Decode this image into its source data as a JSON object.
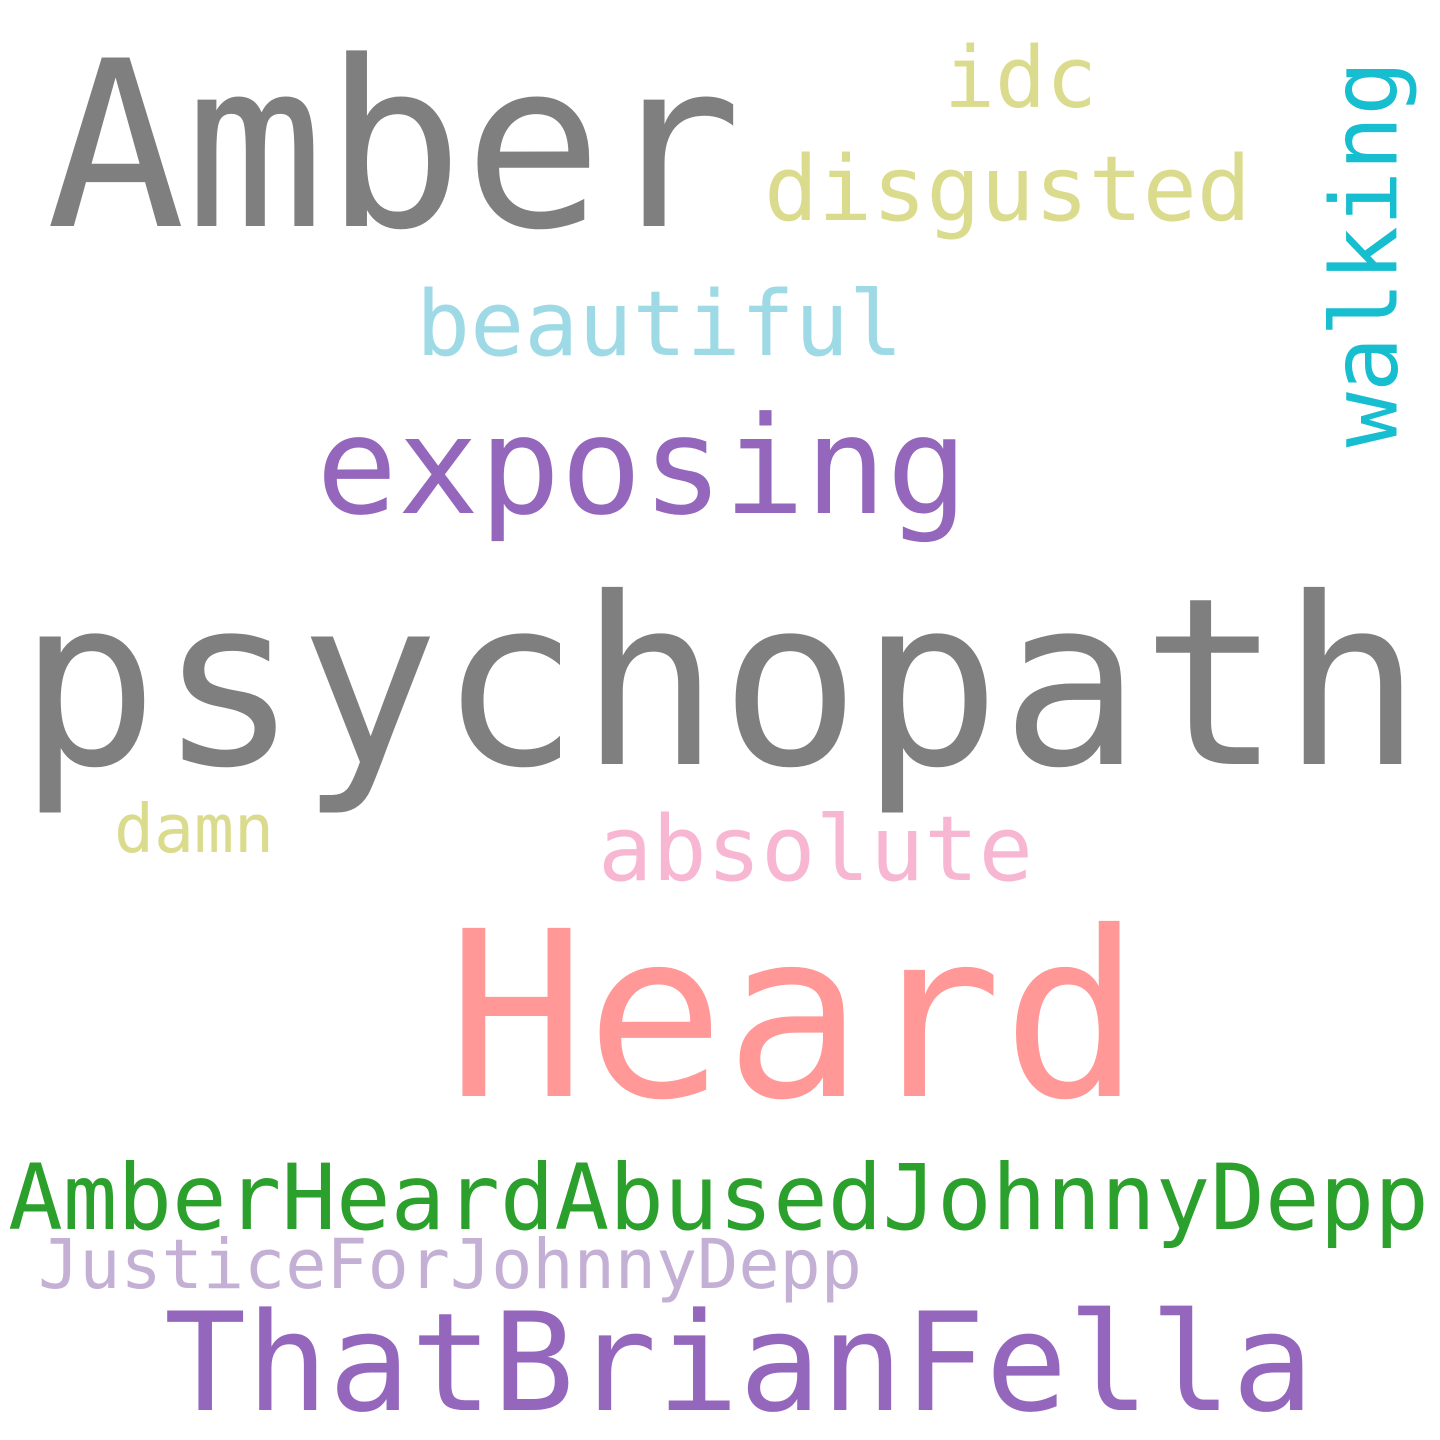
{
  "words": [
    {
      "id": "psychopath",
      "text": "psychopath",
      "color": "#7f7f7f"
    },
    {
      "id": "heard",
      "text": "Heard",
      "color": "#ff9896"
    },
    {
      "id": "amber",
      "text": "Amber",
      "color": "#7f7f7f"
    },
    {
      "id": "exposing",
      "text": "exposing",
      "color": "#9467bd"
    },
    {
      "id": "thatbrianfella",
      "text": "ThatBrianFella",
      "color": "#9467bd"
    },
    {
      "id": "amberheardabusedjohnnydepp",
      "text": "AmberHeardAbusedJohnnyDepp",
      "color": "#2ca02c"
    },
    {
      "id": "disgusted",
      "text": "disgusted",
      "color": "#dbdb8d"
    },
    {
      "id": "beautiful",
      "text": "beautiful",
      "color": "#9edae5"
    },
    {
      "id": "absolute",
      "text": "absolute",
      "color": "#f7b6d2"
    },
    {
      "id": "walking",
      "text": "walking",
      "color": "#17becf"
    },
    {
      "id": "idc",
      "text": "idc",
      "color": "#dbdb8d"
    },
    {
      "id": "justiceforjohnnydepp",
      "text": "JusticeForJohnnyDepp",
      "color": "#c5b0d5"
    },
    {
      "id": "damn",
      "text": "damn",
      "color": "#dbdb8d"
    }
  ]
}
